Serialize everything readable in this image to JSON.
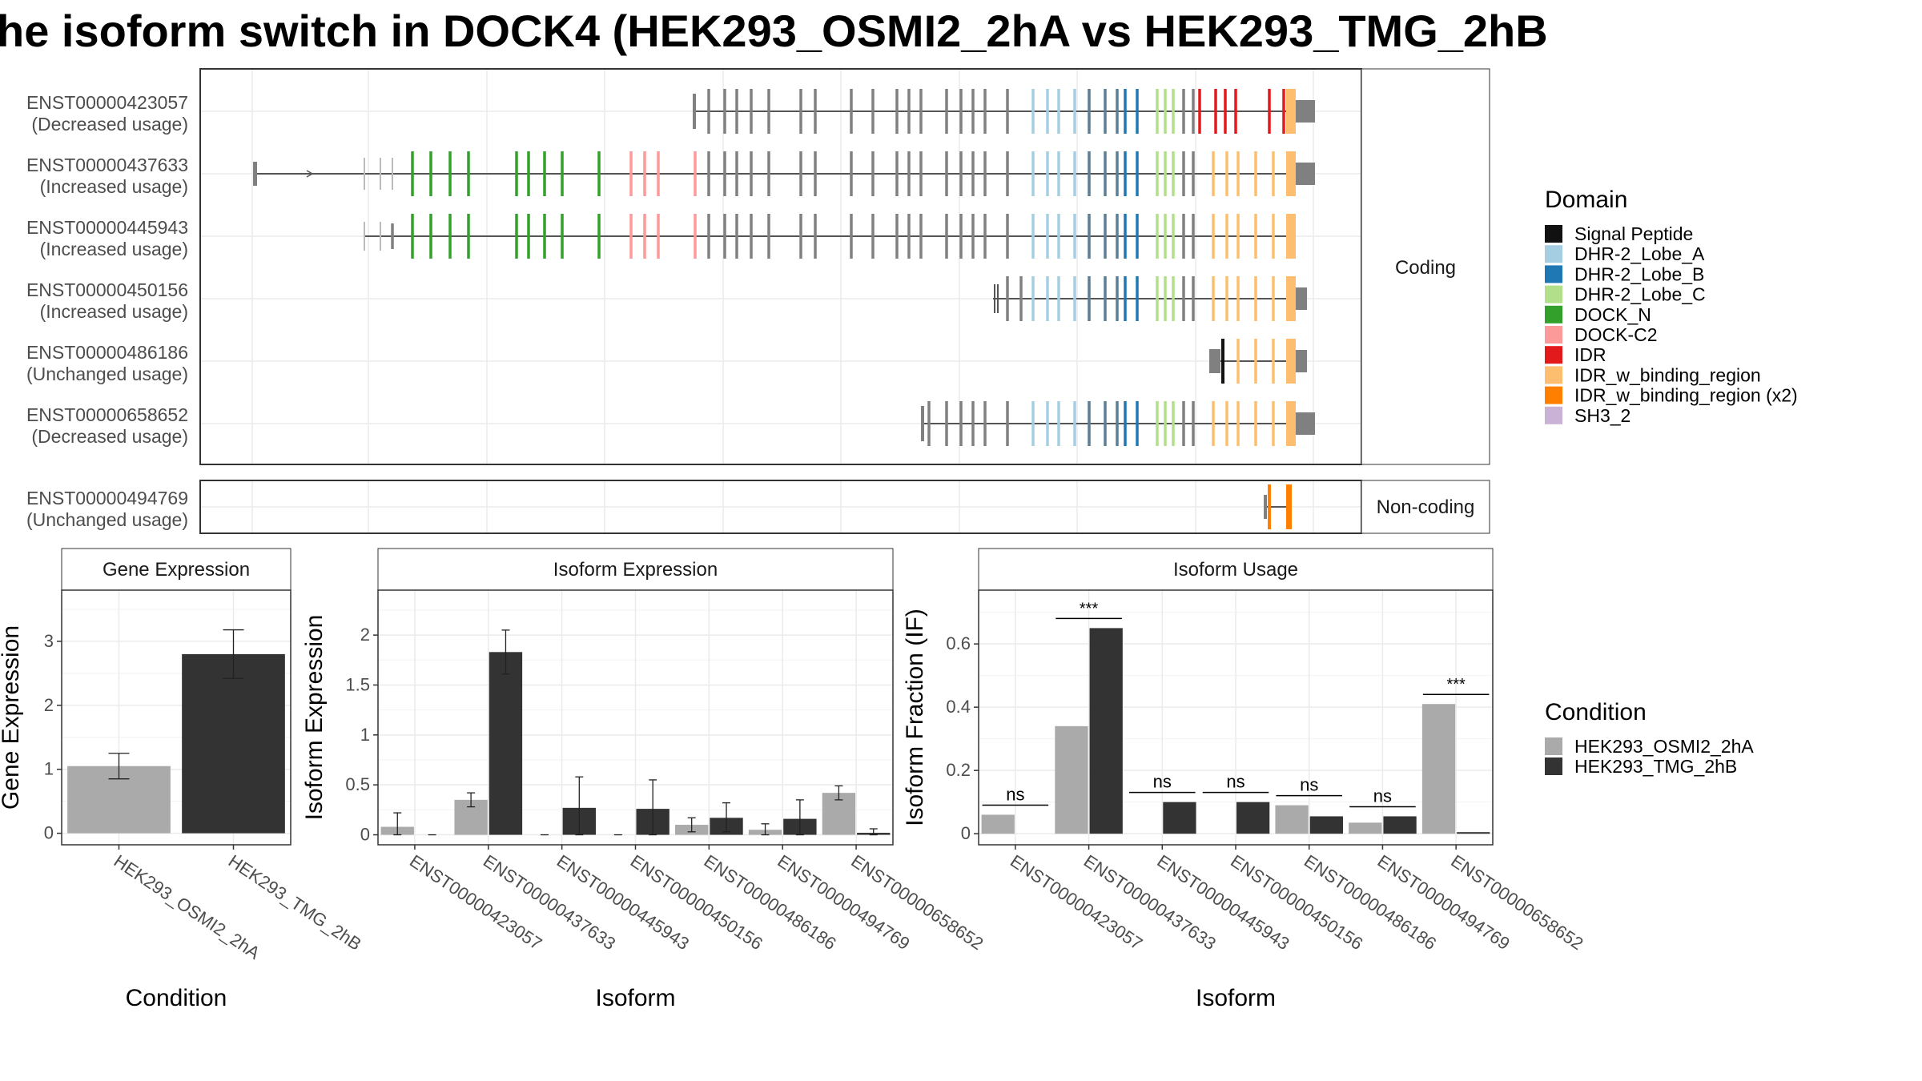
{
  "title": "he isoform switch in DOCK4 (HEK293_OSMI2_2hA vs HEK293_TMG_2hB",
  "structure": {
    "coding_label": "Coding",
    "noncoding_label": "Non-coding",
    "coding": [
      {
        "id": "ENST00000423057",
        "usage": "(Decreased usage)"
      },
      {
        "id": "ENST00000437633",
        "usage": "(Increased usage)"
      },
      {
        "id": "ENST00000445943",
        "usage": "(Increased usage)"
      },
      {
        "id": "ENST00000450156",
        "usage": "(Increased usage)"
      },
      {
        "id": "ENST00000486186",
        "usage": "(Unchanged usage)"
      },
      {
        "id": "ENST00000658652",
        "usage": "(Decreased usage)"
      }
    ],
    "noncoding": [
      {
        "id": "ENST00000494769",
        "usage": "(Unchanged usage)"
      }
    ]
  },
  "domain_legend": {
    "title": "Domain",
    "items": [
      {
        "label": "Signal Peptide",
        "color": "#111111"
      },
      {
        "label": "DHR-2_Lobe_A",
        "color": "#a6cee3"
      },
      {
        "label": "DHR-2_Lobe_B",
        "color": "#1f78b4"
      },
      {
        "label": "DHR-2_Lobe_C",
        "color": "#b2df8a"
      },
      {
        "label": "DOCK_N",
        "color": "#33a02c"
      },
      {
        "label": "DOCK-C2",
        "color": "#fb9a99"
      },
      {
        "label": "IDR",
        "color": "#e31a1c"
      },
      {
        "label": "IDR_w_binding_region",
        "color": "#fdbf6f"
      },
      {
        "label": "IDR_w_binding_region (x2)",
        "color": "#ff7f00"
      },
      {
        "label": "SH3_2",
        "color": "#cab2d6"
      }
    ]
  },
  "condition_legend": {
    "title": "Condition",
    "items": [
      {
        "label": "HEK293_OSMI2_2hA",
        "color": "#aaaaaa"
      },
      {
        "label": "HEK293_TMG_2hB",
        "color": "#333333"
      }
    ]
  },
  "chart_data": [
    {
      "type": "bar",
      "title": "Gene Expression",
      "xlabel": "Condition",
      "ylabel": "Gene Expression",
      "categories": [
        "HEK293_OSMI2_2hA",
        "HEK293_TMG_2hB"
      ],
      "values": [
        1.05,
        2.8
      ],
      "errors": [
        [
          0.85,
          1.25
        ],
        [
          2.42,
          3.18
        ]
      ],
      "colors": [
        "#aaaaaa",
        "#333333"
      ],
      "ylim": [
        -0.18,
        3.8
      ],
      "yticks": [
        0,
        1,
        2,
        3
      ]
    },
    {
      "type": "bar",
      "title": "Isoform Expression",
      "xlabel": "Isoform",
      "ylabel": "Isoform Expression",
      "categories": [
        "ENST00000423057",
        "ENST00000437633",
        "ENST00000445943",
        "ENST00000450156",
        "ENST00000486186",
        "ENST00000494769",
        "ENST00000658652"
      ],
      "series": [
        {
          "name": "HEK293_OSMI2_2hA",
          "color": "#aaaaaa",
          "values": [
            0.08,
            0.35,
            0.0,
            0.0,
            0.1,
            0.05,
            0.42
          ],
          "errors": [
            [
              0.0,
              0.22
            ],
            [
              0.28,
              0.42
            ],
            [
              0.0,
              0.0
            ],
            [
              0.0,
              0.0
            ],
            [
              0.03,
              0.17
            ],
            [
              0.0,
              0.11
            ],
            [
              0.35,
              0.49
            ]
          ]
        },
        {
          "name": "HEK293_TMG_2hB",
          "color": "#333333",
          "values": [
            0.0,
            1.83,
            0.27,
            0.26,
            0.17,
            0.16,
            0.02
          ],
          "errors": [
            [
              0.0,
              0.0
            ],
            [
              1.61,
              2.05
            ],
            [
              0.0,
              0.58
            ],
            [
              0.0,
              0.55
            ],
            [
              0.03,
              0.32
            ],
            [
              0.0,
              0.35
            ],
            [
              0.0,
              0.06
            ]
          ]
        }
      ],
      "ylim": [
        -0.1,
        2.45
      ],
      "yticks": [
        0.0,
        0.5,
        1.0,
        1.5,
        2.0
      ]
    },
    {
      "type": "bar",
      "title": "Isoform Usage",
      "xlabel": "Isoform",
      "ylabel": "Isoform Fraction (IF)",
      "categories": [
        "ENST00000423057",
        "ENST00000437633",
        "ENST00000445943",
        "ENST00000450156",
        "ENST00000486186",
        "ENST00000494769",
        "ENST00000658652"
      ],
      "series": [
        {
          "name": "HEK293_OSMI2_2hA",
          "color": "#aaaaaa",
          "values": [
            0.06,
            0.34,
            0.0,
            0.0,
            0.09,
            0.035,
            0.41
          ]
        },
        {
          "name": "HEK293_TMG_2hB",
          "color": "#333333",
          "values": [
            0.0,
            0.65,
            0.1,
            0.1,
            0.055,
            0.055,
            0.005
          ]
        }
      ],
      "significance": [
        "ns",
        "***",
        "ns",
        "ns",
        "ns",
        "ns",
        "***"
      ],
      "ylim": [
        -0.035,
        0.77
      ],
      "yticks": [
        0.0,
        0.2,
        0.4,
        0.6
      ]
    }
  ]
}
